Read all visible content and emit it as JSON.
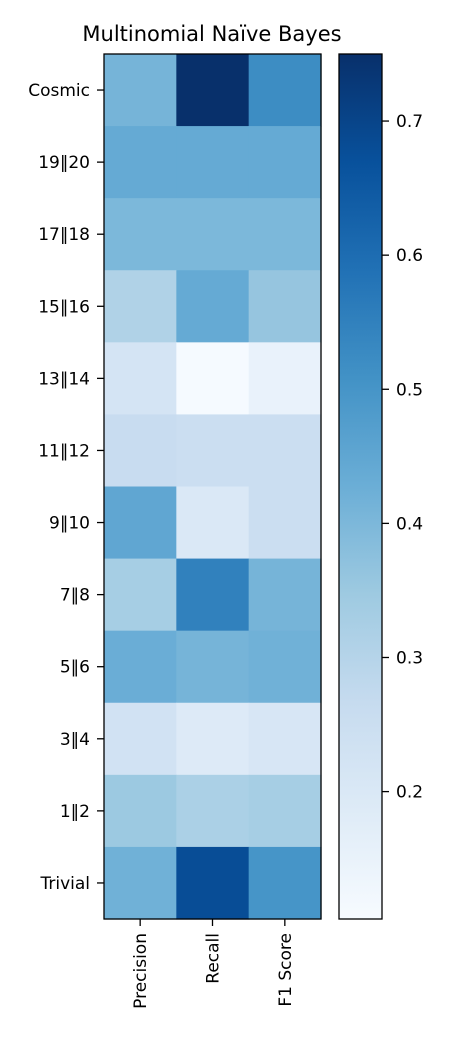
{
  "chart_data": {
    "type": "heatmap",
    "title": "Multinomial Naïve Bayes",
    "columns": [
      "Precision",
      "Recall",
      "F1 Score"
    ],
    "rows": [
      "Cosmic",
      "19‖20",
      "17‖18",
      "15‖16",
      "13‖14",
      "11‖12",
      "9‖10",
      "7‖8",
      "5‖6",
      "3‖4",
      "1‖2",
      "Trivial"
    ],
    "values": [
      [
        0.41,
        0.75,
        0.52
      ],
      [
        0.44,
        0.44,
        0.44
      ],
      [
        0.4,
        0.4,
        0.4
      ],
      [
        0.31,
        0.44,
        0.36
      ],
      [
        0.22,
        0.11,
        0.15
      ],
      [
        0.26,
        0.25,
        0.25
      ],
      [
        0.45,
        0.2,
        0.25
      ],
      [
        0.33,
        0.55,
        0.41
      ],
      [
        0.43,
        0.41,
        0.42
      ],
      [
        0.23,
        0.19,
        0.21
      ],
      [
        0.35,
        0.32,
        0.33
      ],
      [
        0.42,
        0.68,
        0.5
      ]
    ],
    "colorbar": {
      "vmin": 0.105,
      "vmax": 0.75,
      "ticks": [
        0.2,
        0.3,
        0.4,
        0.5,
        0.6,
        0.7
      ],
      "tick_labels": [
        "0.2",
        "0.3",
        "0.4",
        "0.5",
        "0.6",
        "0.7"
      ],
      "colormap": "Blues"
    }
  }
}
